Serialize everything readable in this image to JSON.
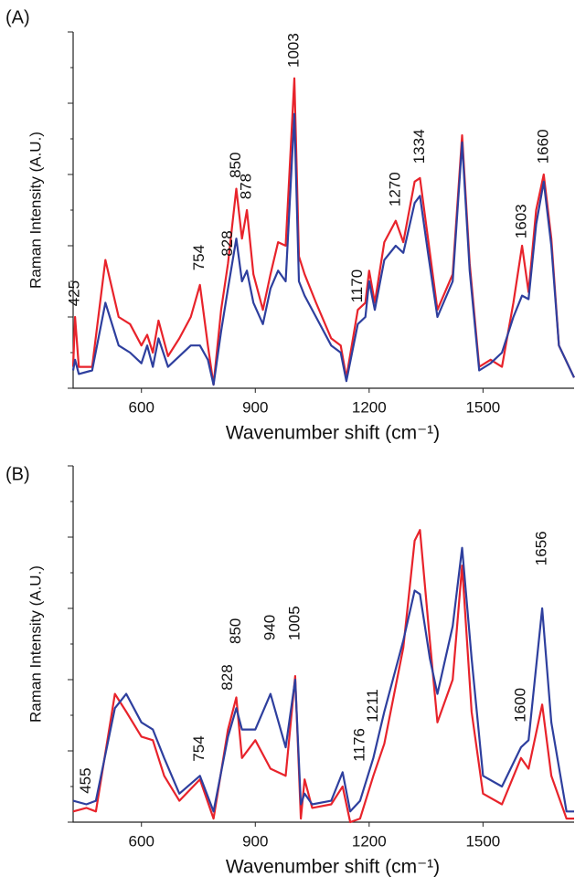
{
  "chart_data": [
    {
      "type": "line",
      "title": "(A)",
      "xlabel": "Wavenumber shift (cm⁻¹)",
      "ylabel": "Raman Intensity (A.U.)",
      "xlim": [
        420,
        1740
      ],
      "xticks": [
        600,
        900,
        1200,
        1500
      ],
      "ylim": [
        0,
        100
      ],
      "yticks": [
        0,
        10,
        20,
        30,
        40,
        50,
        60,
        70,
        80,
        90,
        100
      ],
      "x": [
        420,
        425,
        435,
        470,
        505,
        540,
        570,
        600,
        615,
        630,
        645,
        670,
        700,
        730,
        754,
        775,
        790,
        810,
        828,
        850,
        865,
        878,
        895,
        920,
        940,
        960,
        980,
        1003,
        1015,
        1030,
        1060,
        1100,
        1125,
        1140,
        1170,
        1190,
        1200,
        1215,
        1240,
        1270,
        1290,
        1320,
        1334,
        1355,
        1380,
        1420,
        1445,
        1465,
        1490,
        1520,
        1550,
        1580,
        1603,
        1620,
        1640,
        1660,
        1680,
        1700,
        1740
      ],
      "series": [
        {
          "color": "#e8232b",
          "values": [
            6,
            20,
            6,
            6,
            36,
            20,
            18,
            12,
            15,
            10,
            19,
            9,
            14,
            20,
            29,
            12,
            1,
            22,
            35,
            56,
            42,
            50,
            32,
            22,
            32,
            41,
            40,
            87,
            37,
            32,
            24,
            14,
            12,
            3,
            22,
            24,
            33,
            24,
            41,
            47,
            41,
            58,
            59,
            42,
            22,
            32,
            71,
            35,
            6,
            8,
            6,
            24,
            40,
            27,
            50,
            60,
            42,
            12,
            3
          ]
        },
        {
          "color": "#2e3f9e",
          "values": [
            5,
            8,
            4,
            5,
            24,
            12,
            10,
            7,
            12,
            6,
            14,
            6,
            9,
            12,
            12,
            8,
            1,
            16,
            28,
            42,
            30,
            33,
            24,
            18,
            28,
            33,
            30,
            77,
            30,
            26,
            20,
            12,
            10,
            2,
            18,
            20,
            30,
            22,
            36,
            40,
            38,
            52,
            54,
            38,
            20,
            30,
            69,
            33,
            5,
            7,
            10,
            20,
            26,
            25,
            46,
            58,
            40,
            12,
            3
          ]
        }
      ],
      "annotations": [
        {
          "label": "425",
          "x": 425,
          "y": 23
        },
        {
          "label": "754",
          "x": 754,
          "y": 33
        },
        {
          "label": "828",
          "x": 828,
          "y": 37
        },
        {
          "label": "850",
          "x": 850,
          "y": 59
        },
        {
          "label": "878",
          "x": 878,
          "y": 53
        },
        {
          "label": "1003",
          "x": 1003,
          "y": 90
        },
        {
          "label": "1170",
          "x": 1170,
          "y": 24
        },
        {
          "label": "1270",
          "x": 1270,
          "y": 51
        },
        {
          "label": "1334",
          "x": 1334,
          "y": 63
        },
        {
          "label": "1603",
          "x": 1603,
          "y": 42
        },
        {
          "label": "1660",
          "x": 1660,
          "y": 63
        }
      ]
    },
    {
      "type": "line",
      "title": "(B)",
      "xlabel": "Wavenumber shift (cm⁻¹)",
      "ylabel": "Raman Intensity (A.U.)",
      "xlim": [
        420,
        1740
      ],
      "xticks": [
        600,
        900,
        1200,
        1500
      ],
      "ylim": [
        0,
        100
      ],
      "yticks": [
        0,
        10,
        20,
        30,
        40,
        50,
        60,
        70,
        80,
        90,
        100
      ],
      "x": [
        420,
        455,
        480,
        530,
        560,
        600,
        630,
        660,
        700,
        754,
        790,
        828,
        850,
        865,
        900,
        940,
        980,
        1005,
        1020,
        1030,
        1050,
        1100,
        1130,
        1150,
        1176,
        1211,
        1240,
        1290,
        1320,
        1334,
        1360,
        1380,
        1420,
        1445,
        1470,
        1500,
        1550,
        1600,
        1620,
        1656,
        1680,
        1720,
        1740
      ],
      "series": [
        {
          "color": "#e8232b",
          "values": [
            3,
            4,
            3,
            36,
            31,
            24,
            23,
            13,
            6,
            12,
            1,
            26,
            35,
            18,
            23,
            15,
            13,
            41,
            1,
            12,
            4,
            5,
            10,
            0,
            1,
            13,
            22,
            49,
            79,
            82,
            51,
            28,
            40,
            72,
            31,
            8,
            5,
            18,
            15,
            33,
            13,
            1,
            1
          ]
        },
        {
          "color": "#2e3f9e",
          "values": [
            6,
            5,
            6,
            32,
            36,
            28,
            26,
            18,
            8,
            13,
            3,
            24,
            32,
            26,
            26,
            36,
            21,
            40,
            5,
            8,
            5,
            6,
            14,
            3,
            6,
            18,
            31,
            51,
            65,
            64,
            46,
            36,
            55,
            77,
            46,
            13,
            10,
            21,
            23,
            60,
            28,
            3,
            3
          ]
        }
      ],
      "annotations": [
        {
          "label": "455",
          "x": 455,
          "y": 8
        },
        {
          "label": "754",
          "x": 754,
          "y": 17
        },
        {
          "label": "828",
          "x": 828,
          "y": 37
        },
        {
          "label": "850",
          "x": 850,
          "y": 50
        },
        {
          "label": "940",
          "x": 940,
          "y": 51
        },
        {
          "label": "1005",
          "x": 1005,
          "y": 51
        },
        {
          "label": "1176",
          "x": 1176,
          "y": 17
        },
        {
          "label": "1211",
          "x": 1211,
          "y": 28
        },
        {
          "label": "1600",
          "x": 1600,
          "y": 28
        },
        {
          "label": "1656",
          "x": 1656,
          "y": 72
        }
      ]
    }
  ]
}
